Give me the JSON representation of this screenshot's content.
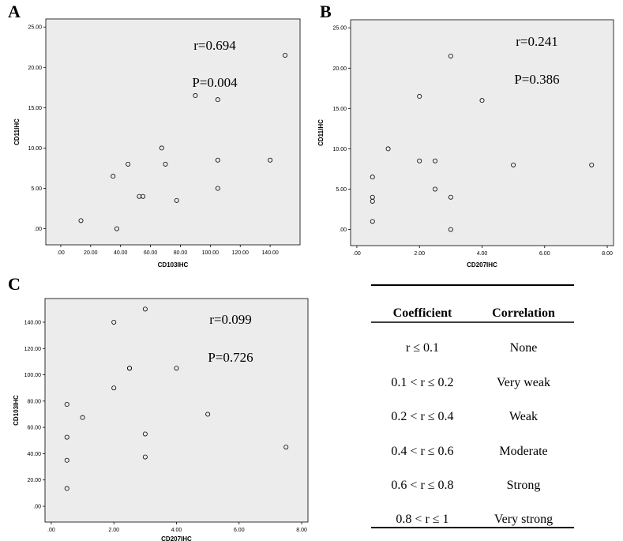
{
  "chart_data": [
    {
      "type": "scatter",
      "panel": "A",
      "xlabel": "CD103IHC",
      "ylabel": "CD11IHC",
      "xlim": [
        -10,
        160
      ],
      "ylim": [
        -2,
        26
      ],
      "xticks": [
        0,
        20,
        40,
        60,
        80,
        100,
        120,
        140
      ],
      "xtick_labels": [
        ".00",
        "20.00",
        "40.00",
        "60.00",
        "80.00",
        "100.00",
        "120.00",
        "140.00"
      ],
      "yticks": [
        0,
        5,
        10,
        15,
        20,
        25
      ],
      "ytick_labels": [
        ".00",
        "5.00",
        "10.00",
        "15.00",
        "20.00",
        "25.00"
      ],
      "r_text": "r=0.694",
      "p_text": "P=0.004",
      "points": [
        {
          "x": 13.5,
          "y": 1
        },
        {
          "x": 35,
          "y": 6.5
        },
        {
          "x": 37.5,
          "y": 0
        },
        {
          "x": 45,
          "y": 8
        },
        {
          "x": 52.5,
          "y": 4
        },
        {
          "x": 55,
          "y": 4
        },
        {
          "x": 67.5,
          "y": 10
        },
        {
          "x": 70,
          "y": 8
        },
        {
          "x": 77.5,
          "y": 3.5
        },
        {
          "x": 90,
          "y": 16.5
        },
        {
          "x": 105,
          "y": 16
        },
        {
          "x": 105,
          "y": 8.5
        },
        {
          "x": 105,
          "y": 5
        },
        {
          "x": 140,
          "y": 8.5
        },
        {
          "x": 150,
          "y": 21.5
        }
      ]
    },
    {
      "type": "scatter",
      "panel": "B",
      "xlabel": "CD207IHC",
      "ylabel": "CD11IHC",
      "xlim": [
        -0.2,
        8.2
      ],
      "ylim": [
        -2,
        26
      ],
      "xticks": [
        0,
        2,
        4,
        6,
        8
      ],
      "xtick_labels": [
        ".00",
        "2.00",
        "4.00",
        "6.00",
        "8.00"
      ],
      "yticks": [
        0,
        5,
        10,
        15,
        20,
        25
      ],
      "ytick_labels": [
        ".00",
        "5.00",
        "10.00",
        "15.00",
        "20.00",
        "25.00"
      ],
      "r_text": "r=0.241",
      "p_text": "P=0.386",
      "points": [
        {
          "x": 0.5,
          "y": 6.5
        },
        {
          "x": 0.5,
          "y": 4
        },
        {
          "x": 0.5,
          "y": 3.5
        },
        {
          "x": 0.5,
          "y": 1
        },
        {
          "x": 1,
          "y": 10
        },
        {
          "x": 2,
          "y": 16.5
        },
        {
          "x": 2,
          "y": 8.5
        },
        {
          "x": 2.5,
          "y": 8.5
        },
        {
          "x": 2.5,
          "y": 5
        },
        {
          "x": 3,
          "y": 21.5
        },
        {
          "x": 3,
          "y": 4
        },
        {
          "x": 3,
          "y": 0
        },
        {
          "x": 4,
          "y": 16
        },
        {
          "x": 5,
          "y": 8
        },
        {
          "x": 7.5,
          "y": 8
        }
      ]
    },
    {
      "type": "scatter",
      "panel": "C",
      "xlabel": "CD207IHC",
      "ylabel": "CD103IHC",
      "xlim": [
        -0.2,
        8.2
      ],
      "ylim": [
        -12,
        158
      ],
      "xticks": [
        0,
        2,
        4,
        6,
        8
      ],
      "xtick_labels": [
        ".00",
        "2.00",
        "4.00",
        "6.00",
        "8.00"
      ],
      "yticks": [
        0,
        20,
        40,
        60,
        80,
        100,
        120,
        140
      ],
      "ytick_labels": [
        ".00",
        "20.00",
        "40.00",
        "60.00",
        "80.00",
        "100.00",
        "120.00",
        "140.00"
      ],
      "r_text": "r=0.099",
      "p_text": "P=0.726",
      "points": [
        {
          "x": 0.5,
          "y": 77.5
        },
        {
          "x": 0.5,
          "y": 52.5
        },
        {
          "x": 0.5,
          "y": 35
        },
        {
          "x": 0.5,
          "y": 13.5
        },
        {
          "x": 1,
          "y": 67.5
        },
        {
          "x": 2,
          "y": 140
        },
        {
          "x": 2,
          "y": 90
        },
        {
          "x": 2.5,
          "y": 105
        },
        {
          "x": 2.5,
          "y": 105
        },
        {
          "x": 3,
          "y": 150
        },
        {
          "x": 3,
          "y": 55
        },
        {
          "x": 3,
          "y": 37.5
        },
        {
          "x": 4,
          "y": 105
        },
        {
          "x": 5,
          "y": 70
        },
        {
          "x": 7.5,
          "y": 45
        }
      ]
    }
  ],
  "table": {
    "headers": [
      "Coefficient",
      "Correlation"
    ],
    "rows": [
      [
        "r ≤ 0.1",
        "None"
      ],
      [
        "0.1 < r ≤ 0.2",
        "Very weak"
      ],
      [
        "0.2 < r ≤ 0.4",
        "Weak"
      ],
      [
        "0.4 < r ≤ 0.6",
        "Moderate"
      ],
      [
        "0.6 < r ≤ 0.8",
        "Strong"
      ],
      [
        "0.8 < r ≤ 1",
        "Very strong"
      ]
    ]
  }
}
